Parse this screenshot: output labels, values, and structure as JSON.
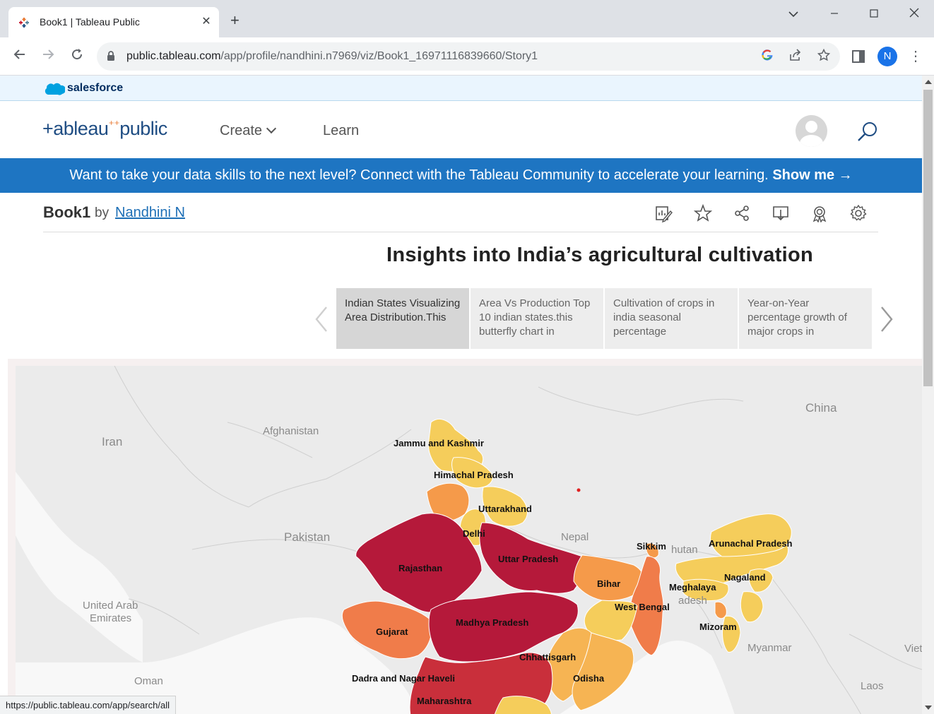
{
  "browser": {
    "tab_title": "Book1 | Tableau Public",
    "url_host": "public.tableau.com",
    "url_path": "/app/profile/nandhini.n7969/viz/Book1_16971116839660/Story1",
    "profile_initial": "N",
    "status_url": "https://public.tableau.com/app/search/all"
  },
  "salesforce": {
    "label": "salesforce"
  },
  "header": {
    "logo_main": "+ableau",
    "logo_pub": "public",
    "nav": {
      "create": "Create",
      "learn": "Learn"
    }
  },
  "banner": {
    "text": "Want to take your data skills to the next level? Connect with the Tableau Community to accelerate your learning.",
    "cta": "Show me →"
  },
  "viz": {
    "book_name": "Book1",
    "by": "by",
    "author": "Nandhini N",
    "story_title": "Insights into India’s agricultural cultivation",
    "story_points": [
      {
        "label": "Indian States Visualizing Area Distribution.This",
        "active": true
      },
      {
        "label": "Area Vs Production Top 10 indian states.this butterfly chart in",
        "active": false
      },
      {
        "label": "Cultivation of crops in india seasonal percentage",
        "active": false
      },
      {
        "label": "Year-on-Year percentage growth of major crops in",
        "active": false
      }
    ]
  },
  "map": {
    "state_labels": {
      "jk": "Jammu and Kashmir",
      "hp": "Himachal Pradesh",
      "uk": "Uttarakhand",
      "dl": "Delhi",
      "rj": "Rajasthan",
      "up": "Uttar Pradesh",
      "sk": "Sikkim",
      "ar": "Arunachal Pradesh",
      "br": "Bihar",
      "ml": "Meghalaya",
      "nl": "Nagaland",
      "wb": "West Bengal",
      "gj": "Gujarat",
      "mp": "Madhya Pradesh",
      "mz": "Mizoram",
      "cg": "Chhattisgarh",
      "dnh": "Dadra and Nagar Haveli",
      "od": "Odisha",
      "mh": "Maharashtra"
    },
    "country_labels": {
      "iran": "Iran",
      "afghanistan": "Afghanistan",
      "pakistan": "Pakistan",
      "nepal": "Nepal",
      "china": "China",
      "uae_1": "United Arab",
      "uae_2": "Emirates",
      "oman": "Oman",
      "myanmar": "Myanmar",
      "bhutan": "hutan",
      "bangladesh": "adesh",
      "laos": "Laos",
      "vietnam": "Viet"
    },
    "colors": {
      "darkest": "#b5193a",
      "dark": "#c92f3b",
      "orange_dark": "#f07c4a",
      "orange": "#f59a4a",
      "light_orange": "#f6b453",
      "yellow": "#f5cd5b",
      "land": "#ebebeb",
      "water": "#f8f8f8"
    }
  }
}
